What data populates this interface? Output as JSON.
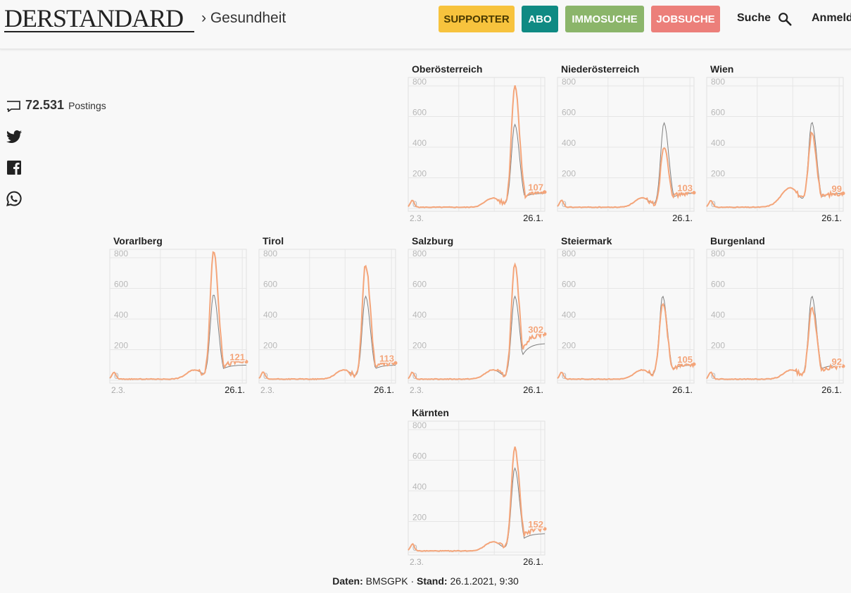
{
  "header": {
    "logo": "DERSTANDARD",
    "breadcrumb": "› Gesundheit",
    "nav": {
      "supporter": "SUPPORTER",
      "abo": "ABO",
      "immo": "IMMOSUCHE",
      "jobs": "JOBSUCHE"
    },
    "search_label": "Suche",
    "login_label": "Anmelden"
  },
  "social": {
    "postings_count": "72.531",
    "postings_label": "Postings"
  },
  "colors": {
    "accent_series": "#f4a57a",
    "comparison_series": "#808080",
    "supporter": "#f7c33d",
    "abo": "#0f8a83",
    "immo": "#8bb56a",
    "jobs": "#ec7f7a"
  },
  "chart_data": [
    {
      "type": "line",
      "title": "Oberösterreich",
      "x_start_label": "2.3.",
      "x_end_label": "26.1.",
      "y_ticks": [
        0,
        200,
        400,
        600,
        800
      ],
      "ylim": [
        0,
        800
      ],
      "last_value_label": "107",
      "peak_value": 820,
      "end_value": 107
    },
    {
      "type": "line",
      "title": "Niederösterreich",
      "x_start_label": "",
      "x_end_label": "26.1.",
      "y_ticks": [
        0,
        200,
        400,
        600,
        800
      ],
      "ylim": [
        0,
        800
      ],
      "last_value_label": "103",
      "peak_value": 420,
      "end_value": 103
    },
    {
      "type": "line",
      "title": "Wien",
      "x_start_label": "",
      "x_end_label": "26.1.",
      "y_ticks": [
        0,
        200,
        400,
        600,
        800
      ],
      "ylim": [
        0,
        800
      ],
      "last_value_label": "99",
      "peak_value": 500,
      "end_value": 99
    },
    {
      "type": "line",
      "title": "Vorarlberg",
      "x_start_label": "2.3.",
      "x_end_label": "26.1.",
      "y_ticks": [
        0,
        200,
        400,
        600,
        800
      ],
      "ylim": [
        0,
        800
      ],
      "last_value_label": "121",
      "peak_value": 860,
      "end_value": 121
    },
    {
      "type": "line",
      "title": "Tirol",
      "x_start_label": "2.3.",
      "x_end_label": "26.1.",
      "y_ticks": [
        0,
        200,
        400,
        600,
        800
      ],
      "ylim": [
        0,
        800
      ],
      "last_value_label": "113",
      "peak_value": 770,
      "end_value": 113
    },
    {
      "type": "line",
      "title": "Salzburg",
      "x_start_label": "2.3.",
      "x_end_label": "26.1.",
      "y_ticks": [
        0,
        200,
        400,
        600,
        800
      ],
      "ylim": [
        0,
        800
      ],
      "last_value_label": "302",
      "peak_value": 760,
      "end_value": 302
    },
    {
      "type": "line",
      "title": "Steiermark",
      "x_start_label": "",
      "x_end_label": "26.1.",
      "y_ticks": [
        0,
        200,
        400,
        600,
        800
      ],
      "ylim": [
        0,
        800
      ],
      "last_value_label": "105",
      "peak_value": 520,
      "end_value": 105
    },
    {
      "type": "line",
      "title": "Burgenland",
      "x_start_label": "",
      "x_end_label": "26.1.",
      "y_ticks": [
        0,
        200,
        400,
        600,
        800
      ],
      "ylim": [
        0,
        800
      ],
      "last_value_label": "92",
      "peak_value": 490,
      "end_value": 92
    },
    {
      "type": "line",
      "title": "Kärnten",
      "x_start_label": "2.3.",
      "x_end_label": "26.1.",
      "y_ticks": [
        0,
        200,
        400,
        600,
        800
      ],
      "ylim": [
        0,
        800
      ],
      "last_value_label": "152",
      "peak_value": 690,
      "end_value": 152
    }
  ],
  "footer": {
    "source_label": "Daten:",
    "source_value": "BMSGPK",
    "separator": "·",
    "date_label": "Stand:",
    "date_value": "26.1.2021, 9:30"
  }
}
